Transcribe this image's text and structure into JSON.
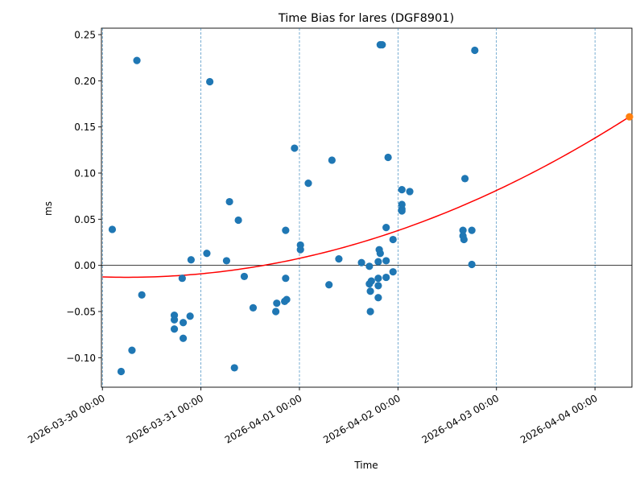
{
  "chart_data": {
    "type": "scatter",
    "title": "Time Bias for lares (DGF8901)",
    "xlabel": "Time",
    "ylabel": "ms",
    "x_unit": "days",
    "xlim": [
      -0.01,
      5.375
    ],
    "ylim": [
      -0.132,
      0.257
    ],
    "x_ticks": [
      {
        "x": 0,
        "label": "2026-03-30 00:00"
      },
      {
        "x": 1,
        "label": "2026-03-31 00:00"
      },
      {
        "x": 2,
        "label": "2026-04-01 00:00"
      },
      {
        "x": 3,
        "label": "2026-04-02 00:00"
      },
      {
        "x": 4,
        "label": "2026-04-03 00:00"
      },
      {
        "x": 5,
        "label": "2026-04-04 00:00"
      }
    ],
    "y_ticks": [
      -0.1,
      -0.05,
      0.0,
      0.05,
      0.1,
      0.15,
      0.2,
      0.25
    ],
    "y_tick_labels": [
      "−0.10",
      "−0.05",
      "0.00",
      "0.05",
      "0.10",
      "0.15",
      "0.20",
      "0.25"
    ],
    "grid": "vertical dashed lines at major x ticks",
    "zero_line": true,
    "series": [
      {
        "color": "#1f77b4",
        "points": [
          [
            0.1,
            0.039
          ],
          [
            0.19,
            -0.115
          ],
          [
            0.3,
            -0.092
          ],
          [
            0.35,
            0.222
          ],
          [
            0.4,
            -0.032
          ],
          [
            0.73,
            -0.054
          ],
          [
            0.73,
            -0.059
          ],
          [
            0.73,
            -0.069
          ],
          [
            0.81,
            -0.014
          ],
          [
            0.82,
            -0.062
          ],
          [
            0.82,
            -0.079
          ],
          [
            0.89,
            -0.055
          ],
          [
            0.9,
            0.006
          ],
          [
            1.06,
            0.013
          ],
          [
            1.09,
            0.199
          ],
          [
            1.26,
            0.005
          ],
          [
            1.29,
            0.069
          ],
          [
            1.34,
            -0.111
          ],
          [
            1.38,
            0.049
          ],
          [
            1.44,
            -0.012
          ],
          [
            1.53,
            -0.046
          ],
          [
            1.76,
            -0.05
          ],
          [
            1.77,
            -0.041
          ],
          [
            1.85,
            -0.039
          ],
          [
            1.86,
            -0.014
          ],
          [
            1.86,
            0.038
          ],
          [
            1.87,
            -0.037
          ],
          [
            1.95,
            0.127
          ],
          [
            2.01,
            0.022
          ],
          [
            2.01,
            0.017
          ],
          [
            2.09,
            0.089
          ],
          [
            2.3,
            -0.021
          ],
          [
            2.33,
            0.114
          ],
          [
            2.4,
            0.007
          ],
          [
            2.63,
            0.003
          ],
          [
            2.71,
            -0.001
          ],
          [
            2.71,
            -0.02
          ],
          [
            2.72,
            -0.028
          ],
          [
            2.72,
            -0.05
          ],
          [
            2.73,
            -0.017
          ],
          [
            2.8,
            0.004
          ],
          [
            2.8,
            -0.014
          ],
          [
            2.8,
            -0.022
          ],
          [
            2.8,
            -0.035
          ],
          [
            2.81,
            0.017
          ],
          [
            2.82,
            0.013
          ],
          [
            2.82,
            0.239
          ],
          [
            2.84,
            0.239
          ],
          [
            2.88,
            0.041
          ],
          [
            2.88,
            0.005
          ],
          [
            2.88,
            -0.013
          ],
          [
            2.9,
            0.117
          ],
          [
            2.95,
            0.028
          ],
          [
            2.95,
            -0.007
          ],
          [
            3.04,
            0.082
          ],
          [
            3.04,
            0.066
          ],
          [
            3.04,
            0.061
          ],
          [
            3.04,
            0.059
          ],
          [
            3.12,
            0.08
          ],
          [
            3.66,
            0.038
          ],
          [
            3.66,
            0.032
          ],
          [
            3.67,
            0.028
          ],
          [
            3.68,
            0.094
          ],
          [
            3.75,
            0.038
          ],
          [
            3.75,
            0.001
          ],
          [
            3.78,
            0.233
          ]
        ]
      },
      {
        "color": "#ff7f0e",
        "points": [
          [
            5.35,
            0.161
          ]
        ]
      }
    ],
    "fit_curve": {
      "color": "#ff0000",
      "type": "quadratic",
      "coefficients": [
        -0.0125,
        -0.0033,
        0.00668
      ]
    }
  }
}
